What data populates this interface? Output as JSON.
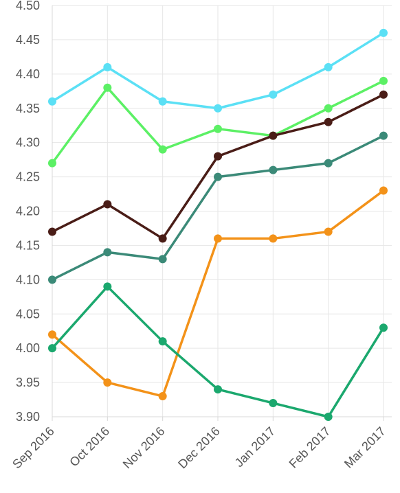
{
  "chart_data": {
    "type": "line",
    "title": "",
    "xlabel": "",
    "ylabel": "",
    "categories": [
      "Sep 2016",
      "Oct 2016",
      "Nov 2016",
      "Dec 2016",
      "Jan 2017",
      "Feb 2017",
      "Mar 2017"
    ],
    "ylim": [
      3.9,
      4.5
    ],
    "y_ticks": [
      "3.90",
      "3.95",
      "4.00",
      "4.05",
      "4.10",
      "4.15",
      "4.20",
      "4.25",
      "4.30",
      "4.35",
      "4.40",
      "4.45",
      "4.50"
    ],
    "grid": true,
    "legend": "none",
    "series": [
      {
        "color": "#5be0f5",
        "values": [
          4.36,
          4.41,
          4.36,
          4.35,
          4.37,
          4.41,
          4.46
        ]
      },
      {
        "color": "#5cf065",
        "values": [
          4.27,
          4.38,
          4.29,
          4.32,
          4.31,
          4.35,
          4.39
        ]
      },
      {
        "color": "#4a1d17",
        "values": [
          4.17,
          4.21,
          4.16,
          4.28,
          4.31,
          4.33,
          4.37
        ]
      },
      {
        "color": "#3b8a78",
        "values": [
          4.1,
          4.14,
          4.13,
          4.25,
          4.26,
          4.27,
          4.31
        ]
      },
      {
        "color": "#f39219",
        "values": [
          4.02,
          3.95,
          3.93,
          4.16,
          4.16,
          4.17,
          4.23
        ]
      },
      {
        "color": "#1ba86e",
        "values": [
          4.0,
          4.09,
          4.01,
          3.94,
          3.92,
          3.9,
          4.03
        ]
      }
    ]
  }
}
